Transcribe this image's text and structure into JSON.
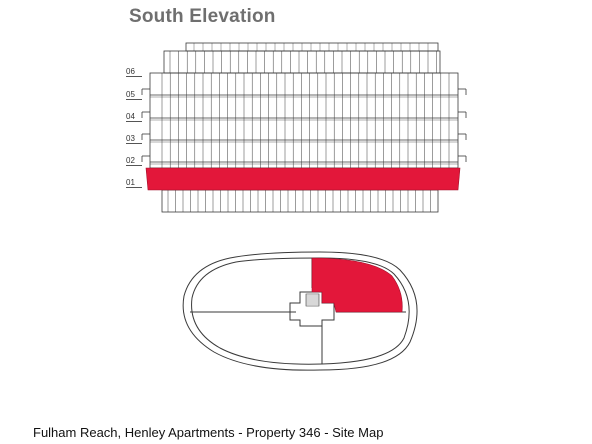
{
  "header": {
    "title": "South Elevation"
  },
  "elevation": {
    "floor_labels": [
      "06",
      "05",
      "04",
      "03",
      "02",
      "01"
    ],
    "highlighted_floor": "01",
    "highlight_color": "#e3173a",
    "line_color": "#3a3a3a"
  },
  "site_plan": {
    "highlighted_unit": "north-east quadrant",
    "highlight_color": "#e3173a"
  },
  "footer": {
    "caption": "Fulham Reach, Henley Apartments - Property 346 - Site Map"
  }
}
